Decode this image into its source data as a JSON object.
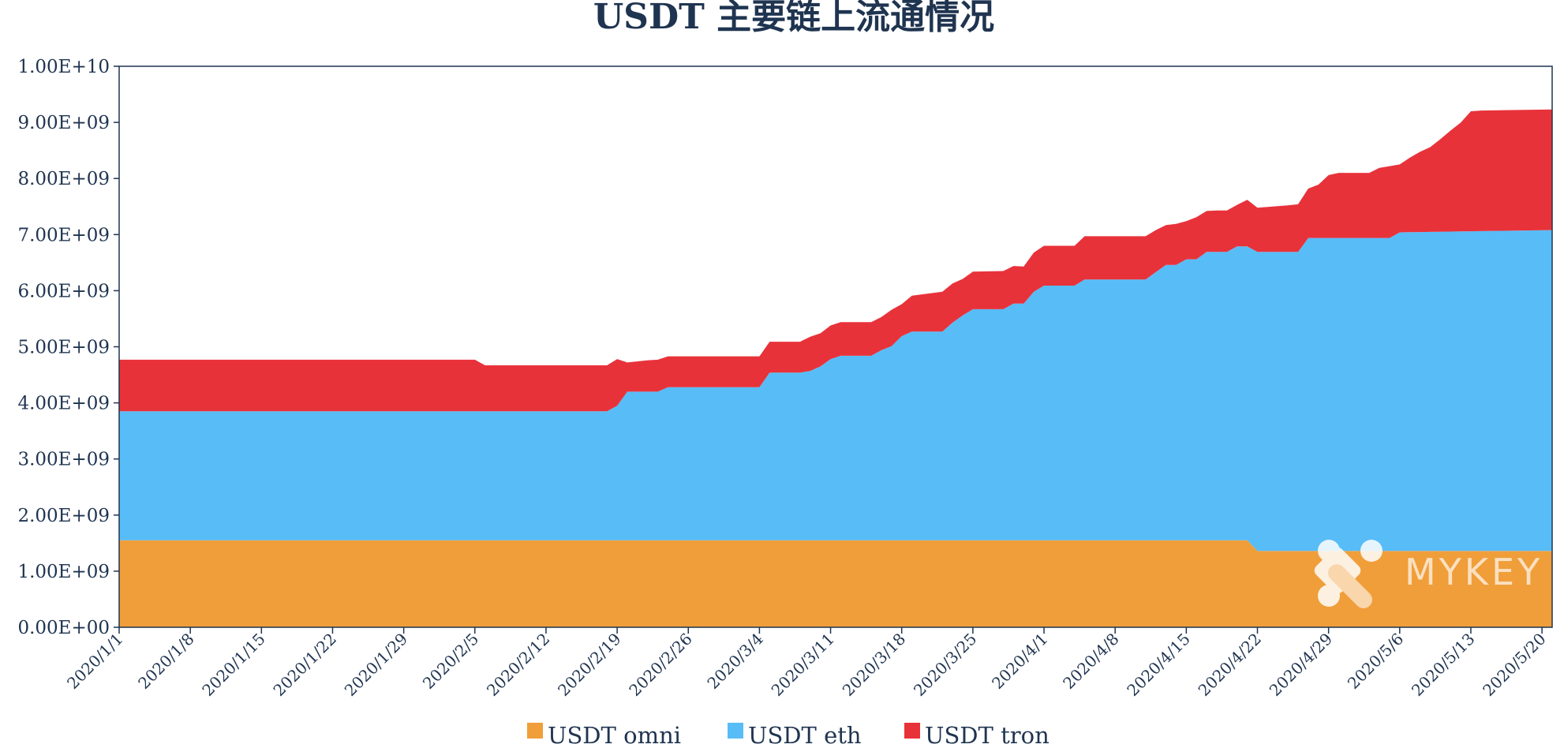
{
  "chart_data": {
    "type": "area",
    "stacked": true,
    "title": "USDT 主要链上流通情况",
    "xlabel": "",
    "ylabel": "",
    "x_ticks": [
      "2020/1/1",
      "2020/1/8",
      "2020/1/15",
      "2020/1/22",
      "2020/1/29",
      "2020/2/5",
      "2020/2/12",
      "2020/2/19",
      "2020/2/26",
      "2020/3/4",
      "2020/3/11",
      "2020/3/18",
      "2020/3/25",
      "2020/4/1",
      "2020/4/8",
      "2020/4/15",
      "2020/4/22",
      "2020/4/29",
      "2020/5/6",
      "2020/5/13",
      "2020/5/20"
    ],
    "x_range": [
      "2020/1/1",
      "2020/5/21"
    ],
    "y_ticks": [
      "0.00E+00",
      "1.00E+09",
      "2.00E+09",
      "3.00E+09",
      "4.00E+09",
      "5.00E+09",
      "6.00E+09",
      "7.00E+09",
      "8.00E+09",
      "9.00E+09",
      "1.00E+10"
    ],
    "ylim": [
      0,
      10000000000
    ],
    "grid": false,
    "legend_position": "bottom",
    "series": [
      {
        "name": "USDT omni",
        "color": "#f09e3a",
        "points": [
          [
            "2020/1/1",
            1550000000
          ],
          [
            "2020/4/21",
            1550000000
          ],
          [
            "2020/4/22",
            1360000000
          ],
          [
            "2020/5/21",
            1360000000
          ]
        ]
      },
      {
        "name": "USDT eth",
        "color": "#58bcf7",
        "points": [
          [
            "2020/1/1",
            2300000000
          ],
          [
            "2020/2/18",
            2300000000
          ],
          [
            "2020/2/19",
            2400000000
          ],
          [
            "2020/2/20",
            2650000000
          ],
          [
            "2020/2/23",
            2650000000
          ],
          [
            "2020/2/24",
            2730000000
          ],
          [
            "2020/3/4",
            2730000000
          ],
          [
            "2020/3/5",
            2990000000
          ],
          [
            "2020/3/8",
            2990000000
          ],
          [
            "2020/3/9",
            3020000000
          ],
          [
            "2020/3/10",
            3100000000
          ],
          [
            "2020/3/11",
            3230000000
          ],
          [
            "2020/3/12",
            3290000000
          ],
          [
            "2020/3/15",
            3290000000
          ],
          [
            "2020/3/16",
            3390000000
          ],
          [
            "2020/3/17",
            3460000000
          ],
          [
            "2020/3/18",
            3640000000
          ],
          [
            "2020/3/19",
            3720000000
          ],
          [
            "2020/3/22",
            3720000000
          ],
          [
            "2020/3/23",
            3880000000
          ],
          [
            "2020/3/24",
            4010000000
          ],
          [
            "2020/3/25",
            4120000000
          ],
          [
            "2020/3/28",
            4120000000
          ],
          [
            "2020/3/29",
            4220000000
          ],
          [
            "2020/3/30",
            4220000000
          ],
          [
            "2020/3/31",
            4430000000
          ],
          [
            "2020/4/1",
            4540000000
          ],
          [
            "2020/4/4",
            4540000000
          ],
          [
            "2020/4/5",
            4650000000
          ],
          [
            "2020/4/11",
            4650000000
          ],
          [
            "2020/4/12",
            4780000000
          ],
          [
            "2020/4/13",
            4910000000
          ],
          [
            "2020/4/14",
            4910000000
          ],
          [
            "2020/4/15",
            5010000000
          ],
          [
            "2020/4/16",
            5010000000
          ],
          [
            "2020/4/17",
            5140000000
          ],
          [
            "2020/4/18",
            5140000000
          ],
          [
            "2020/4/19",
            5140000000
          ],
          [
            "2020/4/20",
            5240000000
          ],
          [
            "2020/4/21",
            5240000000
          ],
          [
            "2020/4/22",
            5330000000
          ],
          [
            "2020/4/25",
            5330000000
          ],
          [
            "2020/4/26",
            5330000000
          ],
          [
            "2020/4/27",
            5580000000
          ],
          [
            "2020/5/5",
            5580000000
          ],
          [
            "2020/5/6",
            5680000000
          ],
          [
            "2020/5/21",
            5720000000
          ]
        ]
      },
      {
        "name": "USDT tron",
        "color": "#e8323a",
        "points": [
          [
            "2020/1/1",
            920000000
          ],
          [
            "2020/2/5",
            920000000
          ],
          [
            "2020/2/6",
            820000000
          ],
          [
            "2020/2/9",
            820000000
          ],
          [
            "2020/2/10",
            820000000
          ],
          [
            "2020/2/18",
            820000000
          ],
          [
            "2020/2/19",
            830000000
          ],
          [
            "2020/2/20",
            520000000
          ],
          [
            "2020/2/22",
            560000000
          ],
          [
            "2020/2/23",
            570000000
          ],
          [
            "2020/2/24",
            550000000
          ],
          [
            "2020/3/4",
            550000000
          ],
          [
            "2020/3/5",
            550000000
          ],
          [
            "2020/3/8",
            550000000
          ],
          [
            "2020/3/9",
            610000000
          ],
          [
            "2020/3/10",
            590000000
          ],
          [
            "2020/3/11",
            600000000
          ],
          [
            "2020/3/12",
            600000000
          ],
          [
            "2020/3/15",
            600000000
          ],
          [
            "2020/3/16",
            590000000
          ],
          [
            "2020/3/17",
            650000000
          ],
          [
            "2020/3/18",
            570000000
          ],
          [
            "2020/3/19",
            640000000
          ],
          [
            "2020/3/22",
            710000000
          ],
          [
            "2020/3/23",
            700000000
          ],
          [
            "2020/3/24",
            650000000
          ],
          [
            "2020/3/25",
            670000000
          ],
          [
            "2020/3/28",
            680000000
          ],
          [
            "2020/3/29",
            670000000
          ],
          [
            "2020/3/30",
            660000000
          ],
          [
            "2020/3/31",
            700000000
          ],
          [
            "2020/4/1",
            710000000
          ],
          [
            "2020/4/4",
            710000000
          ],
          [
            "2020/4/5",
            770000000
          ],
          [
            "2020/4/11",
            770000000
          ],
          [
            "2020/4/12",
            750000000
          ],
          [
            "2020/4/13",
            710000000
          ],
          [
            "2020/4/14",
            730000000
          ],
          [
            "2020/4/15",
            680000000
          ],
          [
            "2020/4/16",
            750000000
          ],
          [
            "2020/4/17",
            730000000
          ],
          [
            "2020/4/18",
            740000000
          ],
          [
            "2020/4/19",
            740000000
          ],
          [
            "2020/4/20",
            740000000
          ],
          [
            "2020/4/21",
            830000000
          ],
          [
            "2020/4/22",
            790000000
          ],
          [
            "2020/4/25",
            830000000
          ],
          [
            "2020/4/26",
            850000000
          ],
          [
            "2020/4/27",
            880000000
          ],
          [
            "2020/4/28",
            950000000
          ],
          [
            "2020/4/29",
            1120000000
          ],
          [
            "2020/4/30",
            1160000000
          ],
          [
            "2020/5/1",
            1160000000
          ],
          [
            "2020/5/3",
            1160000000
          ],
          [
            "2020/5/4",
            1250000000
          ],
          [
            "2020/5/5",
            1280000000
          ],
          [
            "2020/5/6",
            1210000000
          ],
          [
            "2020/5/7",
            1330000000
          ],
          [
            "2020/5/8",
            1430000000
          ],
          [
            "2020/5/9",
            1510000000
          ],
          [
            "2020/5/10",
            1650000000
          ],
          [
            "2020/5/11",
            1800000000
          ],
          [
            "2020/5/12",
            1940000000
          ],
          [
            "2020/5/13",
            2140000000
          ],
          [
            "2020/5/14",
            2150000000
          ],
          [
            "2020/5/21",
            2150000000
          ]
        ]
      }
    ]
  },
  "watermark": {
    "text": "MYKEY"
  }
}
